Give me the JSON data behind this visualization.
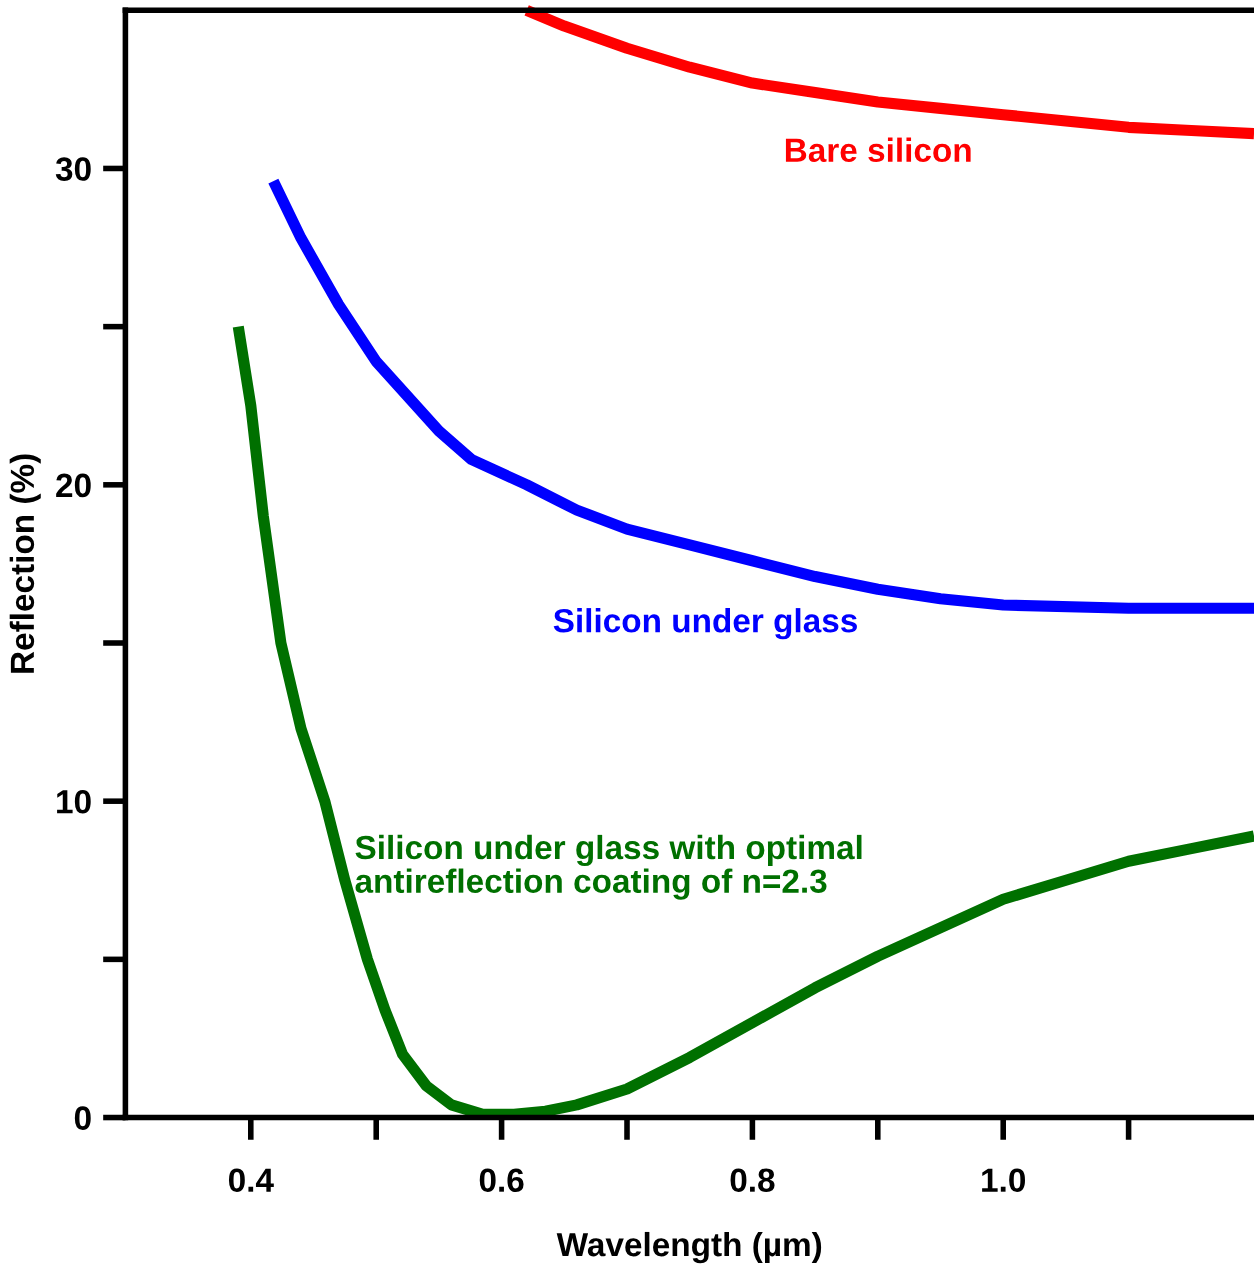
{
  "chart_data": {
    "type": "line",
    "xlabel": "Wavelength (µm)",
    "ylabel": "Reflection (%)",
    "xlim": [
      0.3,
      1.2
    ],
    "xticks": [
      {
        "value": 0.4,
        "label": "0.4"
      },
      {
        "value": 0.5,
        "label": null
      },
      {
        "value": 0.6,
        "label": "0.6"
      },
      {
        "value": 0.7,
        "label": null
      },
      {
        "value": 0.8,
        "label": "0.8"
      },
      {
        "value": 0.9,
        "label": null
      },
      {
        "value": 1.0,
        "label": "1.0"
      },
      {
        "value": 1.1,
        "label": null
      }
    ],
    "ylim": [
      0,
      35
    ],
    "yticks": [
      0,
      {
        "value": 5,
        "label": null
      },
      10,
      {
        "value": 15,
        "label": null
      },
      20,
      {
        "value": 25,
        "label": null
      },
      30
    ],
    "grid": false,
    "legend": false,
    "marker": "none",
    "line_style": "solid",
    "series": [
      {
        "name": "Bare silicon",
        "color": "#ff0000",
        "x": [
          0.62,
          0.65,
          0.7,
          0.75,
          0.8,
          0.85,
          0.9,
          0.95,
          1.0,
          1.05,
          1.1,
          1.15,
          1.2
        ],
        "values": [
          35,
          34.5,
          33.8,
          33.2,
          32.7,
          32.4,
          32.1,
          31.9,
          31.7,
          31.5,
          31.3,
          31.2,
          31.1
        ]
      },
      {
        "name": "Silicon under glass",
        "color": "#0000ff",
        "x": [
          0.418,
          0.44,
          0.47,
          0.5,
          0.55,
          0.576,
          0.62,
          0.66,
          0.7,
          0.75,
          0.8,
          0.85,
          0.9,
          0.95,
          1.0,
          1.1,
          1.2
        ],
        "values": [
          29.6,
          27.8,
          25.7,
          23.9,
          21.7,
          20.8,
          20.0,
          19.2,
          18.6,
          18.1,
          17.6,
          17.1,
          16.7,
          16.4,
          16.2,
          16.1,
          16.1
        ]
      },
      {
        "name": "Silicon under glass with optimal\nantireflection coating of n=2.3",
        "color": "#007000",
        "x": [
          0.39,
          0.4,
          0.41,
          0.424,
          0.44,
          0.459,
          0.475,
          0.493,
          0.507,
          0.521,
          0.54,
          0.56,
          0.585,
          0.61,
          0.635,
          0.66,
          0.7,
          0.75,
          0.8,
          0.85,
          0.9,
          0.95,
          1.0,
          1.05,
          1.1,
          1.15,
          1.2
        ],
        "values": [
          25,
          22.5,
          19,
          15,
          12.3,
          10,
          7.5,
          5,
          3.4,
          2.0,
          1.0,
          0.4,
          0.1,
          0.1,
          0.2,
          0.4,
          0.9,
          1.9,
          3.0,
          4.1,
          5.1,
          6.0,
          6.9,
          7.5,
          8.1,
          8.5,
          8.9
        ]
      }
    ]
  }
}
